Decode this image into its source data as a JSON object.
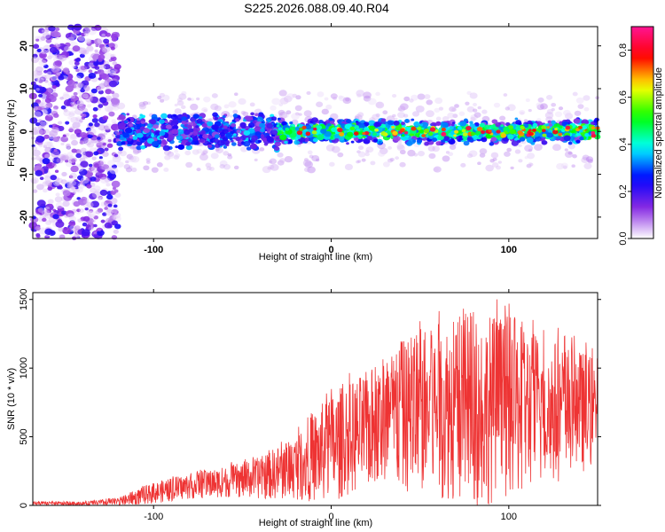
{
  "title": "S225.2026.088.09.40.R04",
  "chart_data": [
    {
      "type": "heatmap",
      "xlabel": "Height of straight line (km)",
      "ylabel": "Frequency (Hz)",
      "xlim": [
        -168,
        150
      ],
      "ylim": [
        -25,
        24.5
      ],
      "xticks": [
        -100,
        0,
        100
      ],
      "yticks": [
        -20,
        -10,
        0,
        10,
        20
      ],
      "colorbar": {
        "label": "Normalized spectral amplitude",
        "range": [
          0,
          0.9
        ],
        "ticks": [
          "0.0",
          "0.2",
          "0.4",
          "0.6",
          "0.8"
        ],
        "tick_values": [
          0,
          0.2,
          0.4,
          0.6,
          0.8
        ],
        "colors": [
          "#ffffff",
          "#8a2be2",
          "#0000ff",
          "#00ffff",
          "#00ff00",
          "#ffff00",
          "#ff0000",
          "#ff1493"
        ]
      },
      "description_regions": [
        {
          "x_range": [
            -168,
            -120
          ],
          "y_range": [
            -25,
            24.5
          ],
          "amplitude": 0.1
        },
        {
          "x_range": [
            -120,
            150
          ],
          "y_center": 0,
          "y_halfwidth": 4,
          "amplitude": 0.35
        },
        {
          "x_range": [
            -20,
            150
          ],
          "y_center": 0,
          "y_halfwidth": 1.5,
          "amplitude": 0.7
        }
      ]
    },
    {
      "type": "line",
      "xlabel": "Height of straight line (km)",
      "ylabel": "SNR (10 * v/v)",
      "xlim": [
        -168,
        150
      ],
      "ylim": [
        0,
        1550
      ],
      "xticks": [
        -100,
        0,
        100
      ],
      "yticks": [
        0,
        500,
        1000,
        1500
      ],
      "color": "#ee3333",
      "envelope": {
        "x": [
          -168,
          -140,
          -120,
          -100,
          -80,
          -60,
          -40,
          -20,
          0,
          20,
          40,
          60,
          80,
          100,
          120,
          150
        ],
        "mean": [
          15,
          15,
          25,
          90,
          140,
          170,
          200,
          280,
          420,
          550,
          650,
          700,
          700,
          720,
          690,
          680
        ],
        "peak": [
          30,
          30,
          60,
          180,
          250,
          300,
          380,
          560,
          900,
          1050,
          1300,
          1450,
          1550,
          1500,
          1350,
          1150
        ]
      }
    }
  ]
}
